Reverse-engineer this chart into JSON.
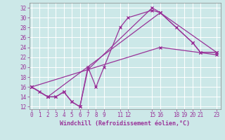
{
  "xlabel": "Windchill (Refroidissement éolien,°C)",
  "background_color": "#cce8e8",
  "grid_color": "#aacccc",
  "line_color": "#993399",
  "lines": [
    {
      "x": [
        0,
        1,
        2,
        3,
        4,
        5,
        6,
        7,
        8,
        9,
        11,
        12,
        15,
        16,
        18,
        20,
        21,
        23
      ],
      "y": [
        16,
        15,
        14,
        14,
        15,
        13,
        12,
        20,
        16,
        20,
        28,
        30,
        31.5,
        31,
        28,
        25,
        23,
        23
      ]
    },
    {
      "x": [
        0,
        2,
        3,
        4,
        5,
        6,
        7,
        15,
        16,
        20,
        21,
        23
      ],
      "y": [
        16,
        14,
        14,
        15,
        13,
        12,
        19.5,
        32,
        31,
        25,
        23,
        23
      ]
    },
    {
      "x": [
        0,
        2,
        16,
        23
      ],
      "y": [
        16,
        14,
        31,
        23
      ]
    },
    {
      "x": [
        0,
        16,
        23
      ],
      "y": [
        16,
        24,
        22.5
      ]
    }
  ],
  "xlim": [
    -0.3,
    23.5
  ],
  "ylim": [
    11.5,
    33
  ],
  "xticks": [
    0,
    1,
    2,
    3,
    4,
    5,
    6,
    7,
    8,
    9,
    11,
    12,
    15,
    16,
    18,
    19,
    20,
    21,
    23
  ],
  "yticks": [
    12,
    14,
    16,
    18,
    20,
    22,
    24,
    26,
    28,
    30,
    32
  ],
  "tick_fontsize": 5.5,
  "xlabel_fontsize": 6.0
}
